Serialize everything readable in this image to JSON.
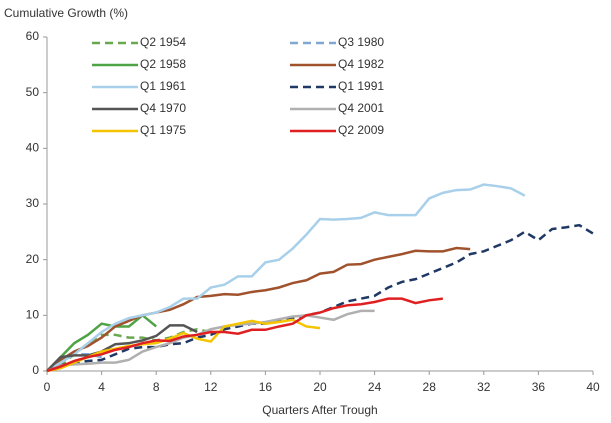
{
  "chart_data": {
    "type": "line",
    "ylabel": "Cumulative Growth (%)",
    "xlabel": "Quarters After Trough",
    "x": [
      0,
      1,
      2,
      3,
      4,
      5,
      6,
      7,
      8,
      9,
      10,
      11,
      12,
      13,
      14,
      15,
      16,
      17,
      18,
      19,
      20,
      21,
      22,
      23,
      24,
      25,
      26,
      27,
      28,
      29,
      30,
      31,
      32,
      33,
      34,
      35,
      36,
      37,
      38,
      39,
      40
    ],
    "xlim": [
      0,
      40
    ],
    "xticks": [
      0,
      4,
      8,
      12,
      16,
      20,
      24,
      28,
      32,
      36,
      40
    ],
    "ylim": [
      0,
      60
    ],
    "yticks": [
      0,
      10,
      20,
      30,
      40,
      50,
      60
    ],
    "grid": false,
    "legend": "top-left",
    "series": [
      {
        "name": "Q2 1954",
        "color": "#6aa84f",
        "dash": true,
        "values": [
          0,
          1,
          3,
          5,
          6.5,
          6.5,
          6,
          6,
          5.5,
          6,
          7,
          7.5,
          7,
          null,
          null,
          null,
          null,
          null,
          null,
          null,
          null,
          null,
          null,
          null,
          null,
          null,
          null,
          null,
          null,
          null,
          null,
          null,
          null,
          null,
          null,
          null,
          null,
          null,
          null,
          null,
          null
        ]
      },
      {
        "name": "Q3 1980",
        "color": "#7fa7d1",
        "dash": true,
        "values": [
          0,
          1.5,
          3,
          3,
          2.5,
          null,
          null,
          null,
          null,
          null,
          null,
          null,
          null,
          null,
          null,
          null,
          null,
          null,
          null,
          null,
          null,
          null,
          null,
          null,
          null,
          null,
          null,
          null,
          null,
          null,
          null,
          null,
          null,
          null,
          null,
          null,
          null,
          null,
          null,
          null,
          null
        ]
      },
      {
        "name": "Q2 1958",
        "color": "#4ea344",
        "dash": false,
        "values": [
          0,
          2.5,
          5,
          6.5,
          8.5,
          8,
          8,
          10,
          8,
          null,
          null,
          null,
          null,
          null,
          null,
          null,
          null,
          null,
          null,
          null,
          null,
          null,
          null,
          null,
          null,
          null,
          null,
          null,
          null,
          null,
          null,
          null,
          null,
          null,
          null,
          null,
          null,
          null,
          null,
          null,
          null
        ]
      },
      {
        "name": "Q4 1982",
        "color": "#a0522d",
        "dash": false,
        "values": [
          0,
          2,
          3.5,
          4.5,
          6,
          8,
          9,
          10,
          10.5,
          11,
          12,
          13.3,
          13.5,
          13.8,
          13.7,
          14.2,
          14.5,
          15,
          15.8,
          16.3,
          17.5,
          17.8,
          19.1,
          19.2,
          20,
          20.5,
          21,
          21.6,
          21.5,
          21.5,
          22.1,
          21.9,
          null,
          null,
          null,
          null,
          null,
          null,
          null,
          null,
          null
        ]
      },
      {
        "name": "Q1 1961",
        "color": "#a8d0ea",
        "dash": false,
        "values": [
          0,
          1.5,
          3,
          5,
          7,
          8.5,
          9.5,
          10,
          10.5,
          11.5,
          13,
          13,
          15,
          15.5,
          17,
          17,
          19.5,
          20,
          22,
          24.5,
          27.3,
          27.2,
          27.3,
          27.5,
          28.5,
          28,
          28,
          28,
          31,
          32,
          32.5,
          32.6,
          33.5,
          33.2,
          32.8,
          31.5,
          null,
          null,
          null,
          null,
          null
        ]
      },
      {
        "name": "Q1 1991",
        "color": "#1f3864",
        "dash": true,
        "values": [
          0,
          1,
          1.5,
          1.8,
          2,
          3,
          4,
          4.3,
          4.3,
          4.8,
          5,
          6,
          6.5,
          7.5,
          8,
          8.5,
          8.5,
          9,
          9.5,
          10,
          10.5,
          11.5,
          12.5,
          13,
          13.5,
          15,
          16,
          16.5,
          17.5,
          18.5,
          19.5,
          21,
          21.5,
          22.5,
          23.5,
          25,
          23.5,
          25.5,
          25.8,
          26.2,
          24.7
        ]
      },
      {
        "name": "Q4 1970",
        "color": "#555555",
        "dash": false,
        "values": [
          0,
          2.5,
          2.8,
          2.8,
          3.5,
          4.8,
          5,
          5.5,
          6.3,
          8.2,
          8.2,
          7,
          null,
          null,
          null,
          null,
          null,
          null,
          null,
          null,
          null,
          null,
          null,
          null,
          null,
          null,
          null,
          null,
          null,
          null,
          null,
          null,
          null,
          null,
          null,
          null,
          null,
          null,
          null,
          null,
          null
        ]
      },
      {
        "name": "Q4 2001",
        "color": "#b0b0b0",
        "dash": false,
        "values": [
          0,
          1,
          1.2,
          1.3,
          1.5,
          1.5,
          2,
          3.5,
          4.3,
          5,
          6,
          6.5,
          7.5,
          8,
          8.3,
          8.5,
          8.8,
          9.3,
          9.8,
          10,
          9.6,
          9.2,
          10.2,
          10.8,
          10.8,
          null,
          null,
          null,
          null,
          null,
          null,
          null,
          null,
          null,
          null,
          null,
          null,
          null,
          null,
          null,
          null
        ]
      },
      {
        "name": "Q1 1975",
        "color": "#f5c400",
        "dash": false,
        "values": [
          0,
          0.5,
          1.5,
          2.5,
          3.5,
          4,
          4.5,
          4.8,
          5,
          5.8,
          6.8,
          5.8,
          5.3,
          8,
          8.5,
          9,
          8.5,
          8.8,
          9.2,
          8,
          7.7,
          null,
          null,
          null,
          null,
          null,
          null,
          null,
          null,
          null,
          null,
          null,
          null,
          null,
          null,
          null,
          null,
          null,
          null,
          null,
          null
        ]
      },
      {
        "name": "Q2 2009",
        "color": "#e02020",
        "dash": false,
        "values": [
          0,
          0.8,
          1.8,
          2.5,
          3,
          3.8,
          4.3,
          5,
          5.5,
          5.4,
          6.2,
          6.5,
          7,
          7,
          6.7,
          7.4,
          7.4,
          8,
          8.5,
          10,
          10.5,
          11.3,
          11.8,
          12,
          12.4,
          13,
          13,
          12.2,
          12.7,
          13,
          null,
          null,
          null,
          null,
          null,
          null,
          null,
          null,
          null,
          null,
          null
        ]
      }
    ]
  }
}
